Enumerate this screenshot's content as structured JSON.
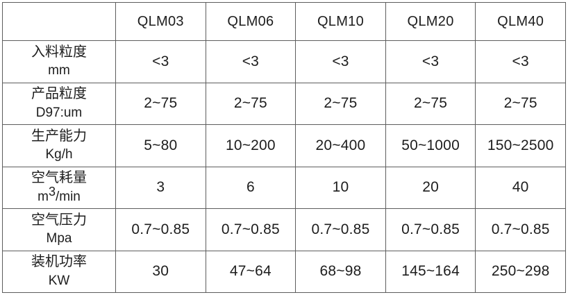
{
  "table": {
    "columns": [
      "",
      "QLM03",
      "QLM06",
      "QLM10",
      "QLM20",
      "QLM40"
    ],
    "rows": [
      {
        "label": "入料粒度",
        "unit_parts": [
          {
            "text": "mm"
          }
        ],
        "values": [
          "<3",
          "<3",
          "<3",
          "<3",
          "<3"
        ]
      },
      {
        "label": "产品粒度",
        "unit_parts": [
          {
            "text": "D97:um"
          }
        ],
        "values": [
          "2~75",
          "2~75",
          "2~75",
          "2~75",
          "2~75"
        ]
      },
      {
        "label": "生产能力",
        "unit_parts": [
          {
            "text": "Kg/h"
          }
        ],
        "values": [
          "5~80",
          "10~200",
          "20~400",
          "50~1000",
          "150~2500"
        ]
      },
      {
        "label": "空气耗量",
        "unit_parts": [
          {
            "text": "m"
          },
          {
            "text": "3",
            "sup": true
          },
          {
            "text": "/min"
          }
        ],
        "values": [
          "3",
          "6",
          "10",
          "20",
          "40"
        ]
      },
      {
        "label": "空气压力",
        "unit_parts": [
          {
            "text": "Mpa"
          }
        ],
        "values": [
          "0.7~0.85",
          "0.7~0.85",
          "0.7~0.85",
          "0.7~0.85",
          "0.7~0.85"
        ]
      },
      {
        "label": "装机功率",
        "unit_parts": [
          {
            "text": "KW"
          }
        ],
        "values": [
          "30",
          "47~64",
          "68~98",
          "145~164",
          "250~298"
        ]
      }
    ],
    "colors": {
      "border": "#5d5d5d",
      "text": "#1d1d1d",
      "background": "#ffffff"
    }
  }
}
